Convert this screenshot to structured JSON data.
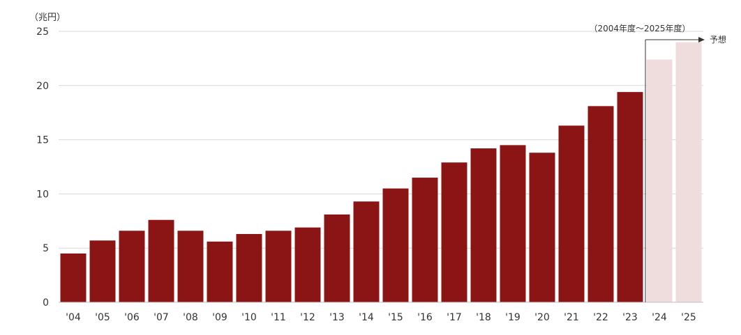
{
  "colors": {
    "actual": "#8b1515",
    "forecast": "#efdcdc",
    "gridline": "#d9d9d9",
    "axis": "#bfbfbf",
    "arrow": "#333333"
  },
  "chart_data": {
    "type": "bar",
    "title": "",
    "unit_label": "（兆円）",
    "period_label": "（2004年度～2025年度）",
    "forecast_label": "予想",
    "xlabel": "",
    "ylabel": "",
    "ylim": [
      0,
      25
    ],
    "yticks": [
      0,
      5,
      10,
      15,
      20,
      25
    ],
    "grid": true,
    "categories": [
      "'04",
      "'05",
      "'06",
      "'07",
      "'08",
      "'09",
      "'10",
      "'11",
      "'12",
      "'13",
      "'14",
      "'15",
      "'16",
      "'17",
      "'18",
      "'19",
      "'20",
      "'21",
      "'22",
      "'23",
      "'24",
      "'25"
    ],
    "values": [
      4.5,
      5.7,
      6.6,
      7.6,
      6.6,
      5.6,
      6.3,
      6.6,
      6.9,
      8.1,
      9.3,
      10.5,
      11.5,
      12.9,
      14.2,
      14.5,
      13.8,
      16.3,
      18.1,
      19.4,
      22.4,
      24.0
    ],
    "forecast": [
      false,
      false,
      false,
      false,
      false,
      false,
      false,
      false,
      false,
      false,
      false,
      false,
      false,
      false,
      false,
      false,
      false,
      false,
      false,
      false,
      true,
      true
    ]
  }
}
